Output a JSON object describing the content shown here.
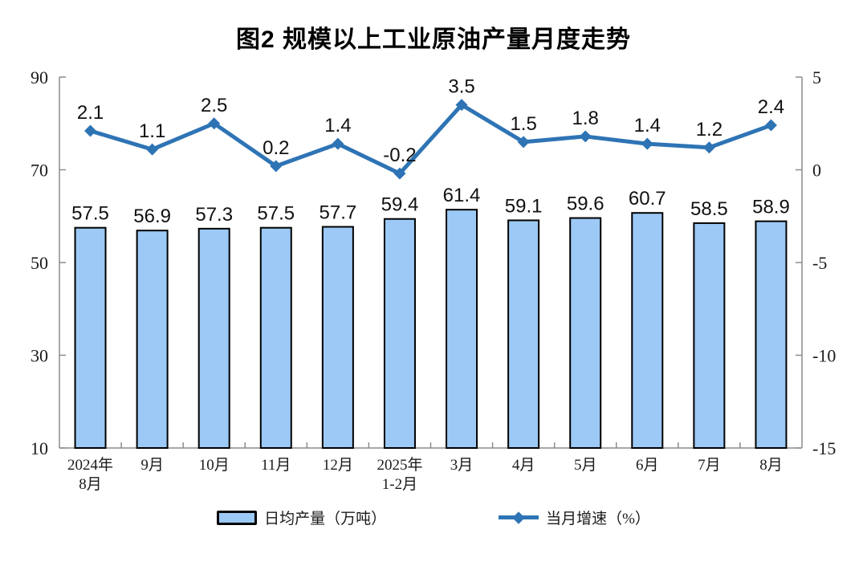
{
  "title": "图2 规模以上工业原油产量月度走势",
  "colors": {
    "bar_fill": "#9CC9F5",
    "bar_stroke": "#000000",
    "line": "#2E74B5",
    "axis": "#8C8C8C",
    "label_text": "#111111"
  },
  "chart_data": {
    "type": "combo-bar-line",
    "categories": [
      [
        "2024年",
        "8月"
      ],
      [
        "9月"
      ],
      [
        "10月"
      ],
      [
        "11月"
      ],
      [
        "12月"
      ],
      [
        "2025年",
        "1-2月"
      ],
      [
        "3月"
      ],
      [
        "4月"
      ],
      [
        "5月"
      ],
      [
        "6月"
      ],
      [
        "7月"
      ],
      [
        "8月"
      ]
    ],
    "series": [
      {
        "name": "日均产量（万吨）",
        "type": "bar",
        "axis": "left",
        "values": [
          57.5,
          56.9,
          57.3,
          57.5,
          57.7,
          59.4,
          61.4,
          59.1,
          59.6,
          60.7,
          58.5,
          58.9
        ]
      },
      {
        "name": "当月增速（%）",
        "type": "line",
        "axis": "right",
        "values": [
          2.1,
          1.1,
          2.5,
          0.2,
          1.4,
          -0.2,
          3.5,
          1.5,
          1.8,
          1.4,
          1.2,
          2.4
        ]
      }
    ],
    "left_axis": {
      "min": 10,
      "max": 90,
      "ticks": [
        90,
        70,
        50,
        30,
        10
      ]
    },
    "right_axis": {
      "min": -15,
      "max": 5,
      "ticks": [
        5,
        0,
        -5,
        -10,
        -15
      ]
    },
    "legend": [
      {
        "label": "日均产量（万吨）",
        "type": "bar"
      },
      {
        "label": "当月增速（%）",
        "type": "line"
      }
    ],
    "grid": false,
    "legend_position": "bottom"
  }
}
